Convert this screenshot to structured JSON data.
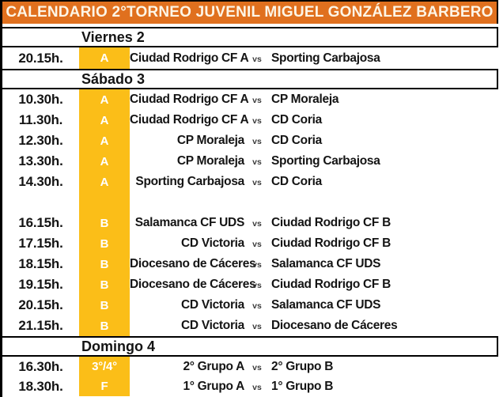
{
  "title": "CALENDARIO 2°TORNEO JUVENIL MIGUEL GONZÁLEZ BARBERO",
  "vs_label": "vs",
  "colors": {
    "header_orange": "#e0701e",
    "slot_yellow": "#fbbe18",
    "title_text": "#fdf5e6",
    "text_black": "#141414",
    "vs_gray": "#3c3c3c"
  },
  "sections": [
    {
      "day": "Viernes 2",
      "rows": [
        {
          "time": "20.15h.",
          "slot": "A",
          "home": "Ciudad Rodrigo CF A",
          "away": "Sporting Carbajosa",
          "blank": false
        }
      ]
    },
    {
      "day": "Sábado 3",
      "rows": [
        {
          "time": "10.30h.",
          "slot": "A",
          "home": "Ciudad Rodrigo CF A",
          "away": "CP Moraleja",
          "blank": false
        },
        {
          "time": "11.30h.",
          "slot": "A",
          "home": "Ciudad Rodrigo CF A",
          "away": "CD Coria",
          "blank": false
        },
        {
          "time": "12.30h.",
          "slot": "A",
          "home": "CP Moraleja",
          "away": "CD Coria",
          "blank": false
        },
        {
          "time": "13.30h.",
          "slot": "A",
          "home": "CP Moraleja",
          "away": "Sporting Carbajosa",
          "blank": false
        },
        {
          "time": "14.30h.",
          "slot": "A",
          "home": "Sporting Carbajosa",
          "away": "CD Coria",
          "blank": false
        },
        {
          "time": "",
          "slot": "",
          "home": "",
          "away": "",
          "blank": true
        },
        {
          "time": "16.15h.",
          "slot": "B",
          "home": "Salamanca CF UDS",
          "away": "Ciudad Rodrigo CF B",
          "blank": false
        },
        {
          "time": "17.15h.",
          "slot": "B",
          "home": "CD Victoria",
          "away": "Ciudad Rodrigo CF B",
          "blank": false
        },
        {
          "time": "18.15h.",
          "slot": "B",
          "home": "Diocesano de Cáceres",
          "away": "Salamanca CF UDS",
          "blank": false
        },
        {
          "time": "19.15h.",
          "slot": "B",
          "home": "Diocesano de Cáceres",
          "away": "Ciudad Rodrigo CF B",
          "blank": false
        },
        {
          "time": "20.15h.",
          "slot": "B",
          "home": "CD Victoria",
          "away": "Salamanca CF UDS",
          "blank": false
        },
        {
          "time": "21.15h.",
          "slot": "B",
          "home": "CD Victoria",
          "away": "Diocesano de Cáceres",
          "blank": false
        }
      ]
    },
    {
      "day": "Domingo 4",
      "rows": [
        {
          "time": "16.30h.",
          "slot": "3°/4°",
          "home": "2° Grupo A",
          "away": "2° Grupo B",
          "blank": false
        },
        {
          "time": "18.30h.",
          "slot": "F",
          "home": "1° Grupo A",
          "away": "1° Grupo B",
          "blank": false
        }
      ]
    }
  ]
}
